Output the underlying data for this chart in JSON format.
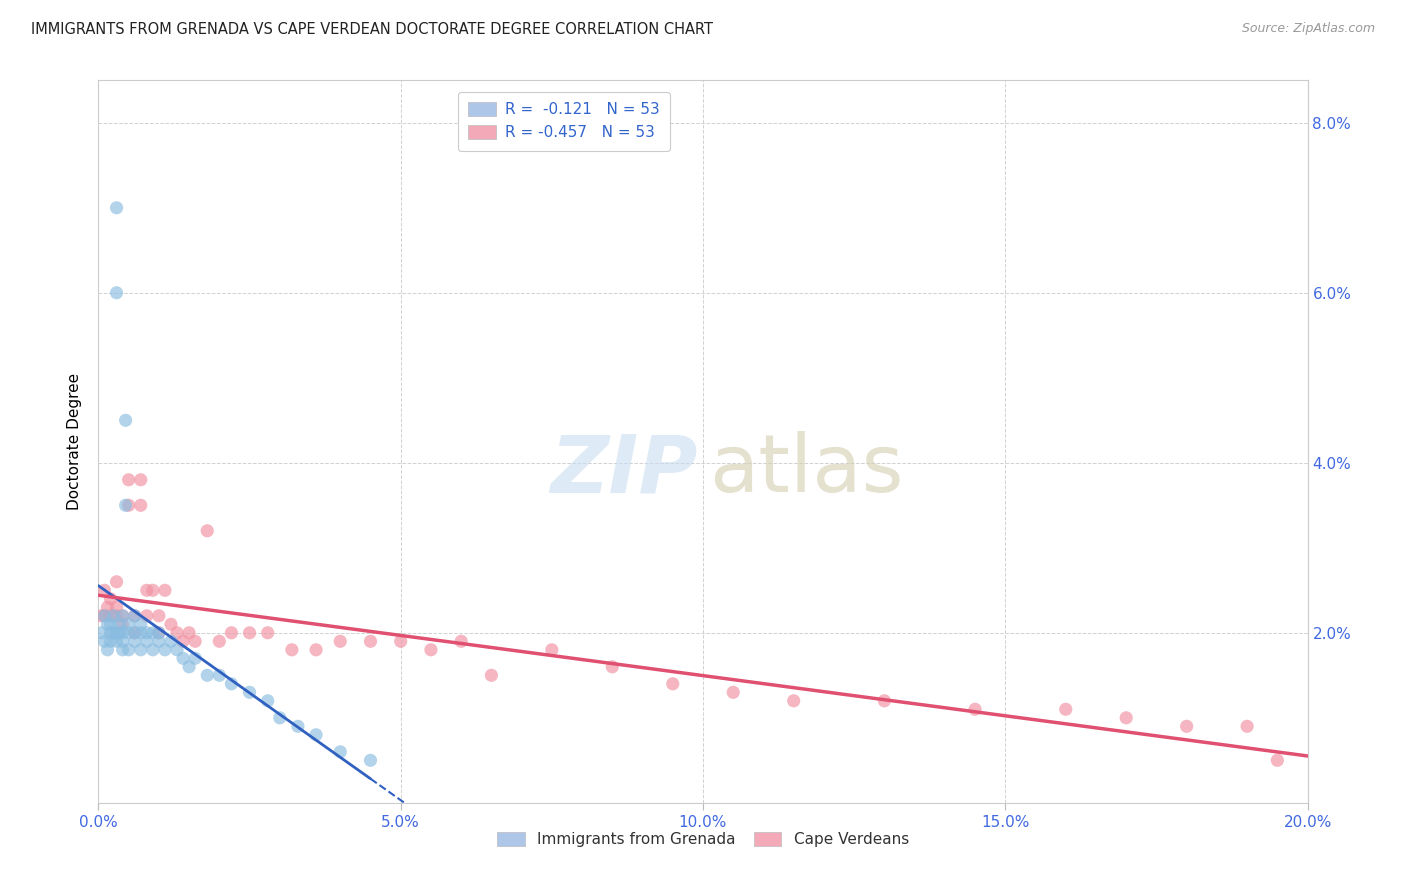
{
  "title": "IMMIGRANTS FROM GRENADA VS CAPE VERDEAN DOCTORATE DEGREE CORRELATION CHART",
  "source": "Source: ZipAtlas.com",
  "ylabel": "Doctorate Degree",
  "xlim": [
    0.0,
    0.2
  ],
  "ylim": [
    0.0,
    0.085
  ],
  "xticks": [
    0.0,
    0.05,
    0.1,
    0.15,
    0.2
  ],
  "xtick_labels": [
    "0.0%",
    "5.0%",
    "10.0%",
    "15.0%",
    "20.0%"
  ],
  "yticks": [
    0.0,
    0.02,
    0.04,
    0.06,
    0.08
  ],
  "ytick_labels_right": [
    "",
    "2.0%",
    "4.0%",
    "6.0%",
    "8.0%"
  ],
  "legend_labels": [
    "Immigrants from Grenada",
    "Cape Verdeans"
  ],
  "grenada_color": "#89bce0",
  "capeverdean_color": "#f090a0",
  "grenada_trend_color": "#3060c0",
  "capeverdean_trend_color": "#e05070",
  "grenada_x": [
    0.0005,
    0.001,
    0.001,
    0.0015,
    0.0015,
    0.002,
    0.002,
    0.002,
    0.0025,
    0.0025,
    0.003,
    0.003,
    0.003,
    0.003,
    0.0035,
    0.0035,
    0.004,
    0.004,
    0.004,
    0.004,
    0.0045,
    0.0045,
    0.005,
    0.005,
    0.005,
    0.006,
    0.006,
    0.006,
    0.007,
    0.007,
    0.007,
    0.008,
    0.008,
    0.009,
    0.009,
    0.01,
    0.01,
    0.011,
    0.012,
    0.013,
    0.014,
    0.015,
    0.016,
    0.018,
    0.02,
    0.022,
    0.025,
    0.028,
    0.03,
    0.033,
    0.036,
    0.04,
    0.045
  ],
  "grenada_y": [
    0.02,
    0.022,
    0.019,
    0.021,
    0.018,
    0.02,
    0.021,
    0.019,
    0.02,
    0.022,
    0.07,
    0.06,
    0.02,
    0.019,
    0.021,
    0.02,
    0.02,
    0.022,
    0.019,
    0.018,
    0.045,
    0.035,
    0.021,
    0.02,
    0.018,
    0.022,
    0.02,
    0.019,
    0.021,
    0.02,
    0.018,
    0.02,
    0.019,
    0.02,
    0.018,
    0.02,
    0.019,
    0.018,
    0.019,
    0.018,
    0.017,
    0.016,
    0.017,
    0.015,
    0.015,
    0.014,
    0.013,
    0.012,
    0.01,
    0.009,
    0.008,
    0.006,
    0.005
  ],
  "capeverdean_x": [
    0.0005,
    0.001,
    0.001,
    0.0015,
    0.002,
    0.002,
    0.003,
    0.003,
    0.003,
    0.004,
    0.004,
    0.005,
    0.005,
    0.006,
    0.006,
    0.007,
    0.007,
    0.008,
    0.008,
    0.009,
    0.01,
    0.01,
    0.011,
    0.012,
    0.013,
    0.014,
    0.015,
    0.016,
    0.018,
    0.02,
    0.022,
    0.025,
    0.028,
    0.032,
    0.036,
    0.04,
    0.045,
    0.05,
    0.055,
    0.06,
    0.065,
    0.075,
    0.085,
    0.095,
    0.105,
    0.115,
    0.13,
    0.145,
    0.16,
    0.17,
    0.18,
    0.19,
    0.195
  ],
  "capeverdean_y": [
    0.022,
    0.025,
    0.022,
    0.023,
    0.024,
    0.022,
    0.026,
    0.022,
    0.023,
    0.022,
    0.021,
    0.038,
    0.035,
    0.022,
    0.02,
    0.035,
    0.038,
    0.025,
    0.022,
    0.025,
    0.022,
    0.02,
    0.025,
    0.021,
    0.02,
    0.019,
    0.02,
    0.019,
    0.032,
    0.019,
    0.02,
    0.02,
    0.02,
    0.018,
    0.018,
    0.019,
    0.019,
    0.019,
    0.018,
    0.019,
    0.015,
    0.018,
    0.016,
    0.014,
    0.013,
    0.012,
    0.012,
    0.011,
    0.011,
    0.01,
    0.009,
    0.009,
    0.005
  ]
}
